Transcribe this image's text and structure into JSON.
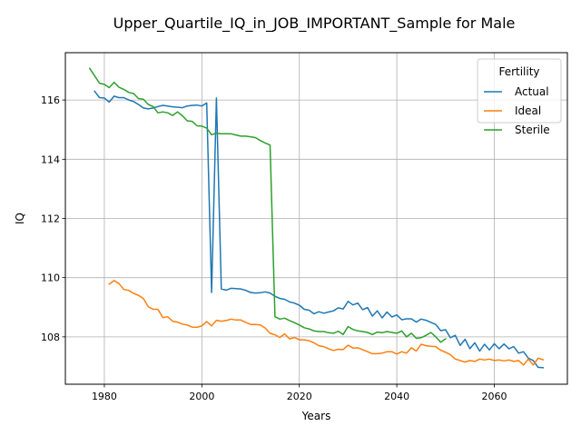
{
  "chart_data": {
    "type": "line",
    "title": "Upper_Quartile_IQ_in_JOB_IMPORTANT_Sample for Male",
    "xlabel": "Years",
    "ylabel": "IQ",
    "xlim": [
      1972,
      2075
    ],
    "ylim": [
      106.4,
      117.6
    ],
    "xticks": [
      1980,
      2000,
      2020,
      2040,
      2060
    ],
    "yticks": [
      108,
      110,
      112,
      114,
      116
    ],
    "grid": true,
    "legend": {
      "title": "Fertility",
      "position": "upper right"
    },
    "series": [
      {
        "name": "Actual",
        "color": "#1f77b4",
        "x": [
          1978,
          1979,
          1980,
          1981,
          1982,
          1983,
          1984,
          1985,
          1986,
          1987,
          1988,
          1989,
          1990,
          1991,
          1992,
          1993,
          1994,
          1995,
          1996,
          1997,
          1998,
          1999,
          2000,
          2001,
          2002,
          2003,
          2004,
          2005,
          2006,
          2007,
          2008,
          2009,
          2010,
          2011,
          2012,
          2013,
          2014,
          2015,
          2016,
          2017,
          2018,
          2019,
          2020,
          2021,
          2022,
          2023,
          2024,
          2025,
          2026,
          2027,
          2028,
          2029,
          2030,
          2031,
          2032,
          2033,
          2034,
          2035,
          2036,
          2037,
          2038,
          2039,
          2040,
          2041,
          2042,
          2043,
          2044,
          2045,
          2046,
          2047,
          2048,
          2049,
          2050,
          2051,
          2052,
          2053,
          2054,
          2055,
          2056,
          2057,
          2058,
          2059,
          2060,
          2061,
          2062,
          2063,
          2064,
          2065,
          2066,
          2067,
          2068,
          2069,
          2070
        ],
        "y": [
          116.3,
          116.08,
          116.07,
          115.93,
          116.13,
          116.08,
          116.08,
          116.0,
          115.95,
          115.85,
          115.73,
          115.7,
          115.73,
          115.78,
          115.82,
          115.8,
          115.77,
          115.76,
          115.74,
          115.8,
          115.82,
          115.83,
          115.8,
          115.9,
          109.5,
          116.07,
          109.62,
          109.58,
          109.64,
          109.63,
          109.62,
          109.57,
          109.5,
          109.48,
          109.49,
          109.52,
          109.48,
          109.37,
          109.3,
          109.27,
          109.18,
          109.14,
          109.07,
          108.93,
          108.9,
          108.78,
          108.85,
          108.8,
          108.84,
          108.88,
          108.98,
          108.94,
          109.2,
          109.08,
          109.14,
          108.92,
          108.99,
          108.7,
          108.88,
          108.64,
          108.84,
          108.67,
          108.74,
          108.58,
          108.61,
          108.61,
          108.5,
          108.6,
          108.56,
          108.49,
          108.42,
          108.21,
          108.24,
          107.97,
          108.05,
          107.71,
          107.92,
          107.6,
          107.8,
          107.52,
          107.75,
          107.56,
          107.77,
          107.6,
          107.76,
          107.6,
          107.67,
          107.45,
          107.5,
          107.28,
          107.2,
          106.97,
          106.96
        ]
      },
      {
        "name": "Ideal",
        "color": "#ff7f0e",
        "x": [
          1981,
          1982,
          1983,
          1984,
          1985,
          1986,
          1987,
          1988,
          1989,
          1990,
          1991,
          1992,
          1993,
          1994,
          1995,
          1996,
          1997,
          1998,
          1999,
          2000,
          2001,
          2002,
          2003,
          2004,
          2005,
          2006,
          2007,
          2008,
          2009,
          2010,
          2011,
          2012,
          2013,
          2014,
          2015,
          2016,
          2017,
          2018,
          2019,
          2020,
          2021,
          2022,
          2023,
          2024,
          2025,
          2026,
          2027,
          2028,
          2029,
          2030,
          2031,
          2032,
          2033,
          2034,
          2035,
          2036,
          2037,
          2038,
          2039,
          2040,
          2041,
          2042,
          2043,
          2044,
          2045,
          2046,
          2047,
          2048,
          2049,
          2050,
          2051,
          2052,
          2053,
          2054,
          2055,
          2056,
          2057,
          2058,
          2059,
          2060,
          2061,
          2062,
          2063,
          2064,
          2065,
          2066,
          2067,
          2068,
          2069,
          2070
        ],
        "y": [
          109.78,
          109.9,
          109.8,
          109.6,
          109.57,
          109.47,
          109.4,
          109.3,
          109.02,
          108.93,
          108.93,
          108.65,
          108.68,
          108.53,
          108.5,
          108.43,
          108.4,
          108.33,
          108.32,
          108.37,
          108.52,
          108.37,
          108.56,
          108.53,
          108.55,
          108.6,
          108.57,
          108.57,
          108.49,
          108.42,
          108.42,
          108.4,
          108.3,
          108.12,
          108.07,
          107.98,
          108.1,
          107.93,
          107.98,
          107.9,
          107.9,
          107.87,
          107.8,
          107.7,
          107.67,
          107.6,
          107.54,
          107.58,
          107.57,
          107.72,
          107.62,
          107.63,
          107.57,
          107.5,
          107.43,
          107.43,
          107.45,
          107.5,
          107.5,
          107.42,
          107.5,
          107.45,
          107.63,
          107.52,
          107.75,
          107.7,
          107.68,
          107.67,
          107.55,
          107.48,
          107.4,
          107.25,
          107.2,
          107.15,
          107.2,
          107.17,
          107.25,
          107.22,
          107.25,
          107.2,
          107.22,
          107.19,
          107.22,
          107.17,
          107.2,
          107.05,
          107.25,
          107.05,
          107.28,
          107.23
        ]
      },
      {
        "name": "Sterile",
        "color": "#2ca02c",
        "x": [
          1977,
          1978,
          1979,
          1980,
          1981,
          1982,
          1983,
          1984,
          1985,
          1986,
          1987,
          1988,
          1989,
          1990,
          1991,
          1992,
          1993,
          1994,
          1995,
          1996,
          1997,
          1998,
          1999,
          2000,
          2001,
          2002,
          2003,
          2004,
          2005,
          2006,
          2007,
          2008,
          2009,
          2010,
          2011,
          2012,
          2013,
          2014,
          2015,
          2016,
          2017,
          2018,
          2019,
          2020,
          2021,
          2022,
          2023,
          2024,
          2025,
          2026,
          2027,
          2028,
          2029,
          2030,
          2031,
          2032,
          2033,
          2034,
          2035,
          2036,
          2037,
          2038,
          2039,
          2040,
          2041,
          2042,
          2043,
          2044,
          2045,
          2046,
          2047,
          2048,
          2049,
          2050
        ],
        "y": [
          117.07,
          116.82,
          116.57,
          116.53,
          116.42,
          116.6,
          116.43,
          116.36,
          116.26,
          116.22,
          116.05,
          116.03,
          115.85,
          115.78,
          115.57,
          115.6,
          115.57,
          115.48,
          115.6,
          115.47,
          115.3,
          115.28,
          115.13,
          115.12,
          115.05,
          114.83,
          114.88,
          114.86,
          114.86,
          114.86,
          114.82,
          114.78,
          114.78,
          114.76,
          114.73,
          114.63,
          114.55,
          114.48,
          108.68,
          108.6,
          108.63,
          108.55,
          108.48,
          108.4,
          108.31,
          108.27,
          108.2,
          108.18,
          108.18,
          108.14,
          108.12,
          108.19,
          108.08,
          108.35,
          108.25,
          108.2,
          108.18,
          108.15,
          108.08,
          108.16,
          108.14,
          108.18,
          108.15,
          108.12,
          108.2,
          108.0,
          108.12,
          107.95,
          107.97,
          108.05,
          108.15,
          108.0,
          107.82,
          107.93
        ]
      }
    ]
  }
}
